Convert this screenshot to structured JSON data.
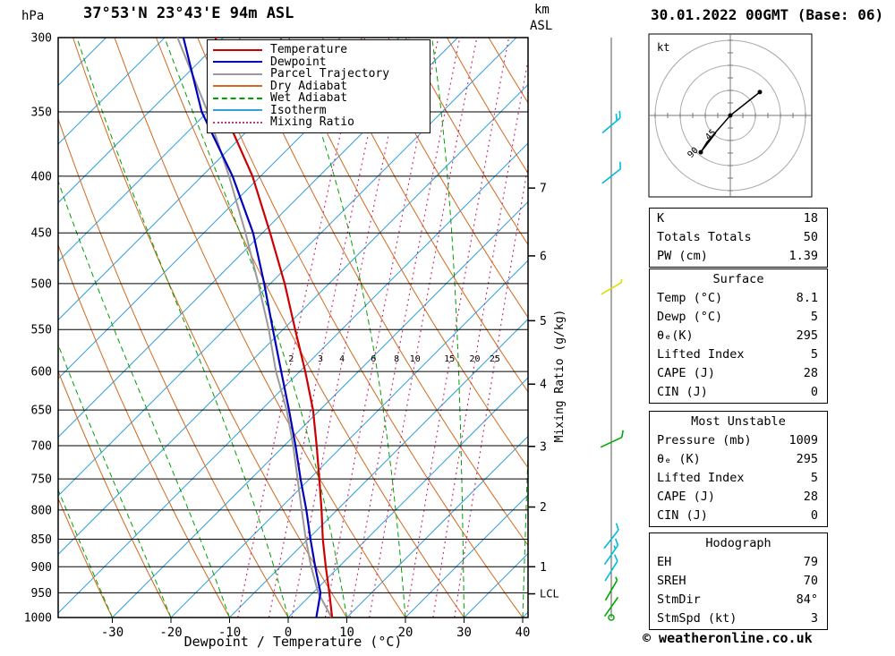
{
  "header": {
    "pressure_unit": "hPa",
    "title": "37°53'N 23°43'E 94m ASL",
    "alt_unit_1": "km",
    "alt_unit_2": "ASL",
    "datetime": "30.01.2022 00GMT (Base: 06)"
  },
  "axes": {
    "x_label": "Dewpoint / Temperature (°C)",
    "x_ticks": [
      -30,
      -20,
      -10,
      0,
      10,
      20,
      30,
      40
    ],
    "pressure_ticks": [
      300,
      350,
      400,
      450,
      500,
      550,
      600,
      650,
      700,
      750,
      800,
      850,
      900,
      950,
      1000
    ],
    "km_ticks": [
      {
        "km": 7,
        "p": 410
      },
      {
        "km": 6,
        "p": 472
      },
      {
        "km": 5,
        "p": 540
      },
      {
        "km": 4,
        "p": 616
      },
      {
        "km": 3,
        "p": 701
      },
      {
        "km": 2,
        "p": 795
      },
      {
        "km": 1,
        "p": 900
      }
    ],
    "lcl_label": "LCL",
    "lcl_p": 952,
    "mixing_axis_label": "Mixing Ratio (g/kg)"
  },
  "legend": [
    {
      "label": "Temperature",
      "color": "#cc0000",
      "style": "solid"
    },
    {
      "label": "Dewpoint",
      "color": "#0000bb",
      "style": "solid"
    },
    {
      "label": "Parcel Trajectory",
      "color": "#999999",
      "style": "solid"
    },
    {
      "label": "Dry Adiabat",
      "color": "#d2691e",
      "style": "solid"
    },
    {
      "label": "Wet Adiabat",
      "color": "#00a000",
      "style": "dashed"
    },
    {
      "label": "Isotherm",
      "color": "#33a0dd",
      "style": "solid"
    },
    {
      "label": "Mixing Ratio",
      "color": "#cc3377",
      "style": "dotted"
    }
  ],
  "chart_data": {
    "type": "skew-t-log-p sounding",
    "title": "37°53'N 23°43'E 94m ASL",
    "datetime": "30.01.2022 00GMT (Base: 06)",
    "x_range_c": [
      -40,
      45
    ],
    "pressure_range_hpa": [
      300,
      1009
    ],
    "pressure_hpa": [
      1009,
      1000,
      950,
      900,
      850,
      800,
      750,
      700,
      650,
      600,
      550,
      500,
      450,
      400,
      350,
      300
    ],
    "temperature_c": [
      8.1,
      7.5,
      5.5,
      3.3,
      1.1,
      -0.9,
      -3.2,
      -5.7,
      -8.5,
      -12.2,
      -16.5,
      -21.1,
      -26.7,
      -33.2,
      -42.0,
      -48.0
    ],
    "dewpoint_c": [
      5.0,
      4.8,
      4.0,
      1.5,
      -1.0,
      -3.5,
      -6.4,
      -9.3,
      -12.6,
      -16.3,
      -20.3,
      -24.6,
      -29.6,
      -36.6,
      -45.8,
      -53.5
    ],
    "parcel_c": [
      8.1,
      7.4,
      3.6,
      0.8,
      -1.8,
      -4.3,
      -6.9,
      -9.7,
      -13.0,
      -17.2,
      -21.0,
      -25.6,
      -30.9,
      -37.2,
      -44.8,
      -54.5
    ],
    "mixing_ratio_lines": [
      2,
      3,
      4,
      6,
      8,
      10,
      15,
      20,
      25
    ],
    "isotherm_step_c": 10,
    "dry_adiabat_step_k": 10,
    "wet_adiabat_step_k": 10
  },
  "tables": [
    {
      "header": null,
      "rows": [
        [
          "K",
          "18"
        ],
        [
          "Totals Totals",
          "50"
        ],
        [
          "PW (cm)",
          "1.39"
        ]
      ]
    },
    {
      "header": "Surface",
      "rows": [
        [
          "Temp (°C)",
          "8.1"
        ],
        [
          "Dewp (°C)",
          "5"
        ],
        [
          "θₑ(K)",
          "295"
        ],
        [
          "Lifted Index",
          "5"
        ],
        [
          "CAPE (J)",
          "28"
        ],
        [
          "CIN (J)",
          "0"
        ]
      ]
    },
    {
      "header": "Most Unstable",
      "rows": [
        [
          "Pressure (mb)",
          "1009"
        ],
        [
          "θₑ (K)",
          "295"
        ],
        [
          "Lifted Index",
          "5"
        ],
        [
          "CAPE (J)",
          "28"
        ],
        [
          "CIN (J)",
          "0"
        ]
      ]
    },
    {
      "header": "Hodograph",
      "rows": [
        [
          "EH",
          "79"
        ],
        [
          "SREH",
          "70"
        ],
        [
          "StmDir",
          "84°"
        ],
        [
          "StmSpd (kt)",
          "3"
        ]
      ]
    }
  ],
  "hodograph": {
    "unit": "kt",
    "rings_kt": [
      45,
      90,
      135
    ],
    "ring_labels": [
      "45",
      "90"
    ],
    "trace_kt": [
      [
        53,
        42
      ],
      [
        0,
        0
      ],
      [
        -42,
        -48
      ],
      [
        -53,
        -66
      ],
      [
        -26,
        -31
      ]
    ],
    "dots_kt": [
      [
        53,
        42
      ],
      [
        0,
        0
      ],
      [
        -53,
        -66
      ]
    ]
  },
  "barbs": [
    {
      "p": 360,
      "color": "cyan",
      "angle": 40,
      "feathers": [
        8,
        8
      ]
    },
    {
      "p": 400,
      "color": "cyan",
      "angle": 38,
      "feathers": [
        8
      ]
    },
    {
      "p": 505,
      "color": "yellow",
      "angle": 30,
      "feathers": [
        4
      ]
    },
    {
      "p": 695,
      "color": "green",
      "angle": 25,
      "feathers": [
        8
      ]
    },
    {
      "p": 850,
      "color": "cyan",
      "angle": 52,
      "feathers": [
        8
      ]
    },
    {
      "p": 878,
      "color": "cyan",
      "angle": 55,
      "feathers": [
        8,
        4
      ]
    },
    {
      "p": 908,
      "color": "cyan",
      "angle": 58,
      "feathers": [
        8
      ]
    },
    {
      "p": 945,
      "color": "green",
      "angle": 60,
      "feathers": [
        4
      ]
    },
    {
      "p": 978,
      "color": "green",
      "angle": 55,
      "feathers": []
    },
    {
      "p": 1000,
      "color": "green",
      "angle": 0,
      "feathers": "calm"
    }
  ],
  "colors": {
    "temperature": "#cc0000",
    "dewpoint": "#0000bb",
    "parcel": "#999999",
    "dry_adiabat": "#d2691e",
    "wet_adiabat": "#00a000",
    "isotherm": "#33a0dd",
    "mixing_ratio": "#cc3377",
    "mixing_label": "#bb22aa",
    "barb_green": "#00aa00",
    "barb_cyan": "#00bbdd",
    "barb_yellow": "#dddd00",
    "frame": "#000000"
  },
  "footer": {
    "copyright": "© weatheronline.co.uk"
  }
}
